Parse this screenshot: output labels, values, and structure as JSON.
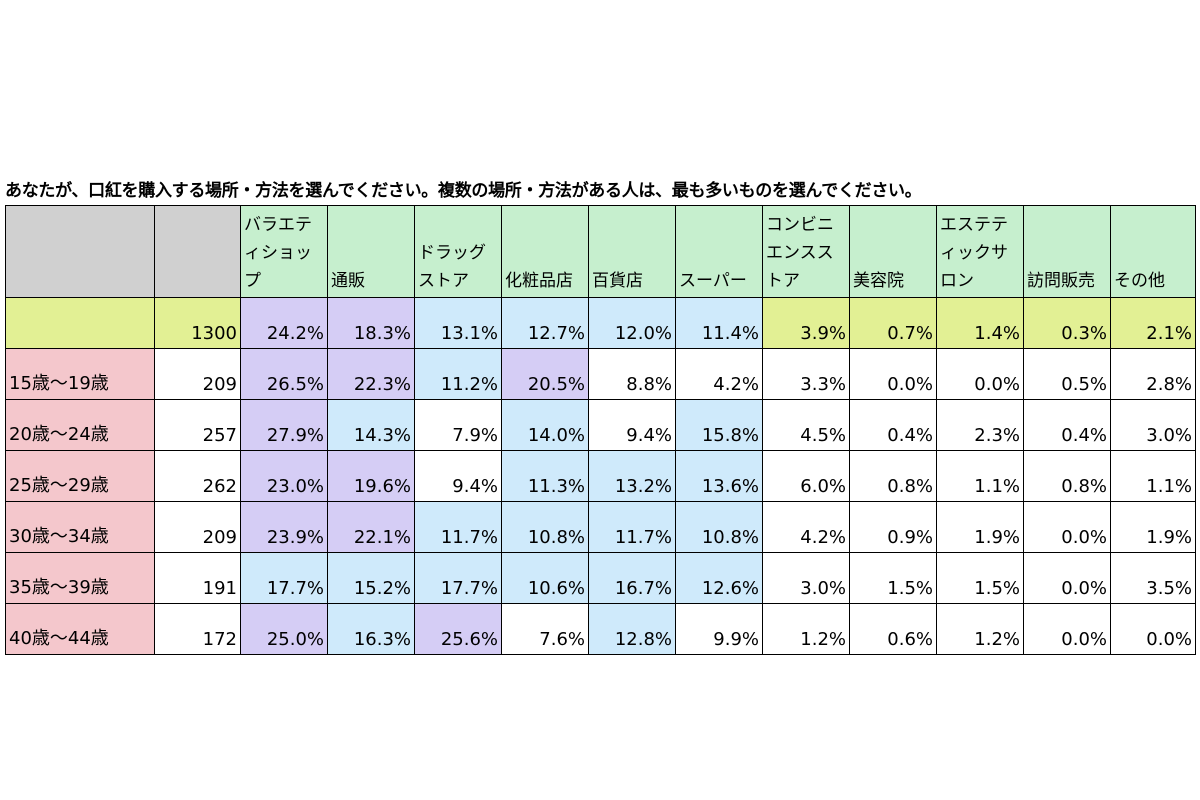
{
  "title": "あなたが、口紅を購入する場所・方法を選んでください。複数の場所・方法がある人は、最も多いものを選んでください。",
  "colors": {
    "header_blank": "#d0d0d0",
    "header_green": "#c6efce",
    "total_row": "#e2f094",
    "age_label": "#f4c7cc",
    "rank1_purple": "#d5cdf5",
    "rank2_blue": "#cfeafb",
    "default": "#ffffff"
  },
  "chart_data": {
    "type": "table",
    "title": "あなたが、口紅を購入する場所・方法を選んでください。複数の場所・方法がある人は、最も多いものを選んでください。",
    "columns": [
      "バラエティショップ",
      "通販",
      "ドラッグストア",
      "化粧品店",
      "百貨店",
      "スーパー",
      "コンビニエンスストア",
      "美容院",
      "エステティックサロン",
      "訪問販売",
      "その他"
    ],
    "rows": [
      {
        "label": "",
        "n": "1300",
        "values": [
          "24.2%",
          "18.3%",
          "13.1%",
          "12.7%",
          "12.0%",
          "11.4%",
          "3.9%",
          "0.7%",
          "1.4%",
          "0.3%",
          "2.1%"
        ],
        "colors": [
          "#d5cdf5",
          "#d5cdf5",
          "#cfeafb",
          "#cfeafb",
          "#cfeafb",
          "#cfeafb",
          "#e2f094",
          "#e2f094",
          "#e2f094",
          "#e2f094",
          "#e2f094"
        ]
      },
      {
        "label": "15歳～19歳",
        "n": "209",
        "values": [
          "26.5%",
          "22.3%",
          "11.2%",
          "20.5%",
          "8.8%",
          "4.2%",
          "3.3%",
          "0.0%",
          "0.0%",
          "0.5%",
          "2.8%"
        ],
        "colors": [
          "#d5cdf5",
          "#d5cdf5",
          "#cfeafb",
          "#d5cdf5",
          "#ffffff",
          "#ffffff",
          "#ffffff",
          "#ffffff",
          "#ffffff",
          "#ffffff",
          "#ffffff"
        ]
      },
      {
        "label": "20歳～24歳",
        "n": "257",
        "values": [
          "27.9%",
          "14.3%",
          "7.9%",
          "14.0%",
          "9.4%",
          "15.8%",
          "4.5%",
          "0.4%",
          "2.3%",
          "0.4%",
          "3.0%"
        ],
        "colors": [
          "#d5cdf5",
          "#cfeafb",
          "#ffffff",
          "#cfeafb",
          "#ffffff",
          "#cfeafb",
          "#ffffff",
          "#ffffff",
          "#ffffff",
          "#ffffff",
          "#ffffff"
        ]
      },
      {
        "label": "25歳～29歳",
        "n": "262",
        "values": [
          "23.0%",
          "19.6%",
          "9.4%",
          "11.3%",
          "13.2%",
          "13.6%",
          "6.0%",
          "0.8%",
          "1.1%",
          "0.8%",
          "1.1%"
        ],
        "colors": [
          "#d5cdf5",
          "#d5cdf5",
          "#ffffff",
          "#cfeafb",
          "#cfeafb",
          "#cfeafb",
          "#ffffff",
          "#ffffff",
          "#ffffff",
          "#ffffff",
          "#ffffff"
        ]
      },
      {
        "label": "30歳～34歳",
        "n": "209",
        "values": [
          "23.9%",
          "22.1%",
          "11.7%",
          "10.8%",
          "11.7%",
          "10.8%",
          "4.2%",
          "0.9%",
          "1.9%",
          "0.0%",
          "1.9%"
        ],
        "colors": [
          "#d5cdf5",
          "#d5cdf5",
          "#cfeafb",
          "#cfeafb",
          "#cfeafb",
          "#cfeafb",
          "#ffffff",
          "#ffffff",
          "#ffffff",
          "#ffffff",
          "#ffffff"
        ]
      },
      {
        "label": "35歳～39歳",
        "n": "191",
        "values": [
          "17.7%",
          "15.2%",
          "17.7%",
          "10.6%",
          "16.7%",
          "12.6%",
          "3.0%",
          "1.5%",
          "1.5%",
          "0.0%",
          "3.5%"
        ],
        "colors": [
          "#cfeafb",
          "#cfeafb",
          "#cfeafb",
          "#cfeafb",
          "#cfeafb",
          "#cfeafb",
          "#ffffff",
          "#ffffff",
          "#ffffff",
          "#ffffff",
          "#ffffff"
        ]
      },
      {
        "label": "40歳～44歳",
        "n": "172",
        "values": [
          "25.0%",
          "16.3%",
          "25.6%",
          "7.6%",
          "12.8%",
          "9.9%",
          "1.2%",
          "0.6%",
          "1.2%",
          "0.0%",
          "0.0%"
        ],
        "colors": [
          "#d5cdf5",
          "#cfeafb",
          "#d5cdf5",
          "#ffffff",
          "#cfeafb",
          "#ffffff",
          "#ffffff",
          "#ffffff",
          "#ffffff",
          "#ffffff",
          "#ffffff"
        ]
      }
    ]
  }
}
